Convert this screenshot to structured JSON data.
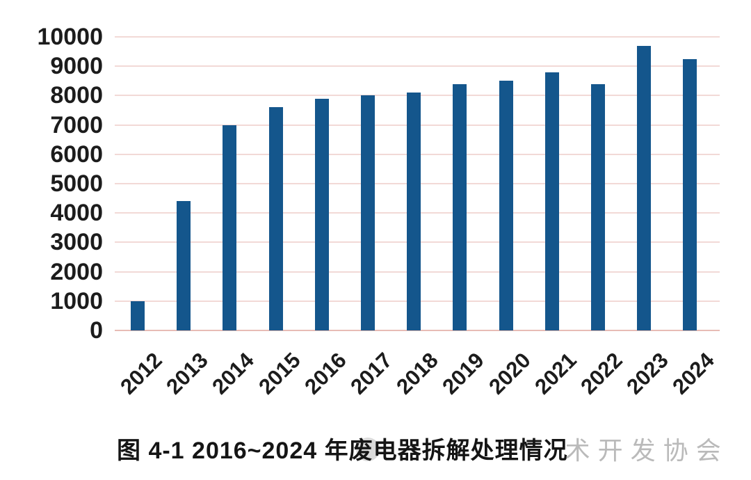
{
  "page": {
    "background": "#ffffff"
  },
  "chart_data": {
    "type": "bar",
    "title": "图 4-1 2016~2024 年废电器拆解处理情况",
    "xlabel": "",
    "ylabel": "",
    "categories": [
      "2012",
      "2013",
      "2014",
      "2015",
      "2016",
      "2017",
      "2018",
      "2019",
      "2020",
      "2021",
      "2022",
      "2023",
      "2024"
    ],
    "values": [
      1000,
      4400,
      7000,
      7600,
      7900,
      8000,
      8100,
      8400,
      8500,
      8800,
      8400,
      9700,
      9250
    ],
    "ylim": [
      0,
      10000
    ],
    "ytick_step": 1000,
    "yticks": [
      0,
      1000,
      2000,
      3000,
      4000,
      5000,
      6000,
      7000,
      8000,
      9000,
      10000
    ],
    "grid": true,
    "legend_position": "none",
    "bar_color": "#14568c",
    "gridline_color": "#f2d9d6",
    "axisline_color": "#e7bcb5",
    "tick_label_color": "#1c1c1c",
    "xtick_rotation_deg": -45
  },
  "caption": {
    "text": "图 4-1 2016~2024 年废电器拆解处理情况"
  },
  "watermark": {
    "visible_text": "术开发协会",
    "color": "#a3a3a3",
    "logo": "gray-circle"
  }
}
